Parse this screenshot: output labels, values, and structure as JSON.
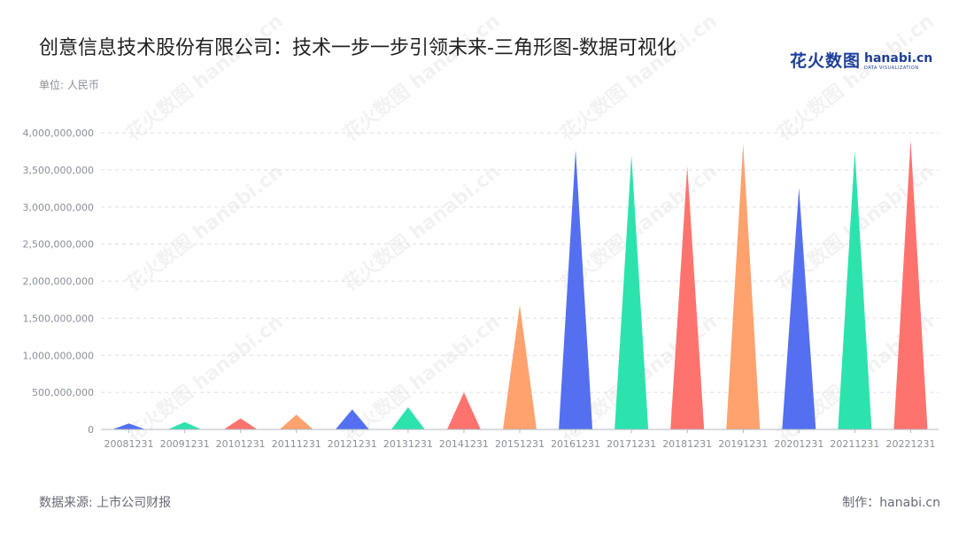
{
  "title": "创意信息技术股份有限公司：技术一步一步引领未来-三角形图-数据可视化",
  "unit_label": "单位: 人民币",
  "logo": {
    "cn": "花火数图",
    "en": "hanabi.cn",
    "sub": "DATA VISUALIZATION"
  },
  "footer": {
    "source": "数据来源: 上市公司财报",
    "credit": "制作：hanabi.cn"
  },
  "colors": [
    "#5470f0",
    "#2de3ad",
    "#ff736e",
    "#ffa26e"
  ],
  "chart_data": {
    "type": "bar",
    "shape": "triangle",
    "categories": [
      "20081231",
      "20091231",
      "20101231",
      "20111231",
      "20121231",
      "20131231",
      "20141231",
      "20151231",
      "20161231",
      "20171231",
      "20181231",
      "20191231",
      "20201231",
      "20211231",
      "20221231"
    ],
    "values": [
      80000000,
      100000000,
      150000000,
      200000000,
      270000000,
      300000000,
      500000000,
      1680000000,
      3770000000,
      3700000000,
      3550000000,
      3850000000,
      3260000000,
      3760000000,
      3900000000
    ],
    "y_ticks": [
      "0",
      "500,000,000",
      "1,000,000,000",
      "1,500,000,000",
      "2,000,000,000",
      "2,500,000,000",
      "3,000,000,000",
      "3,500,000,000",
      "4,000,000,000"
    ],
    "ylim": [
      0,
      4000000000
    ],
    "grid": true,
    "xlabel": "",
    "ylabel": ""
  }
}
